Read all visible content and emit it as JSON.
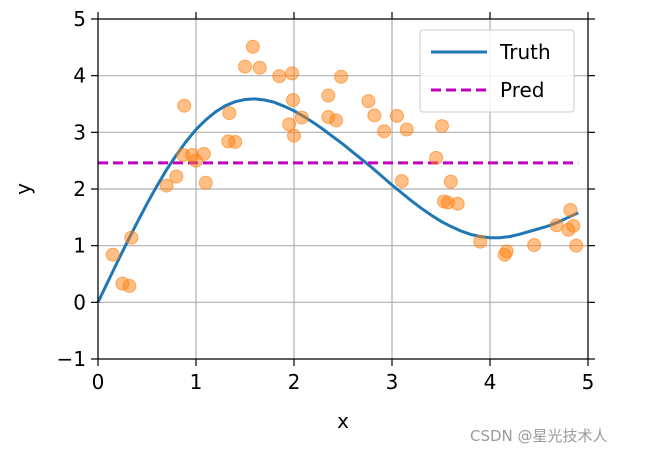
{
  "chart_data": {
    "type": "scatter",
    "xlabel": "x",
    "ylabel": "y",
    "xlim": [
      0,
      5
    ],
    "ylim": [
      -1,
      5
    ],
    "x_ticks": [
      "0",
      "1",
      "2",
      "3",
      "4",
      "5"
    ],
    "y_ticks": [
      "−1",
      "0",
      "1",
      "2",
      "3",
      "4",
      "5"
    ],
    "grid": true,
    "legend_position": "top-right",
    "series": [
      {
        "name": "Truth",
        "kind": "line",
        "color": "#1f77b4",
        "x": [
          0.0,
          0.1,
          0.2,
          0.3,
          0.4,
          0.5,
          0.6,
          0.7,
          0.8,
          0.9,
          1.0,
          1.1,
          1.2,
          1.3,
          1.4,
          1.5,
          1.6,
          1.7,
          1.8,
          1.9,
          2.0,
          2.1,
          2.2,
          2.3,
          2.4,
          2.5,
          2.6,
          2.7,
          2.8,
          2.9,
          3.0,
          3.1,
          3.2,
          3.3,
          3.4,
          3.5,
          3.6,
          3.7,
          3.8,
          3.9,
          4.0,
          4.1,
          4.2,
          4.3,
          4.4,
          4.5,
          4.6,
          4.7,
          4.8,
          4.9
        ],
        "y": [
          0.0,
          0.36,
          0.72,
          1.07,
          1.41,
          1.74,
          2.05,
          2.34,
          2.6,
          2.84,
          3.05,
          3.22,
          3.36,
          3.47,
          3.54,
          3.58,
          3.59,
          3.57,
          3.53,
          3.46,
          3.38,
          3.28,
          3.17,
          3.05,
          2.92,
          2.79,
          2.65,
          2.51,
          2.37,
          2.22,
          2.07,
          1.93,
          1.79,
          1.66,
          1.54,
          1.43,
          1.34,
          1.26,
          1.2,
          1.16,
          1.14,
          1.14,
          1.16,
          1.2,
          1.25,
          1.3,
          1.35,
          1.42,
          1.5,
          1.58
        ]
      },
      {
        "name": "Pred",
        "kind": "dashed-line",
        "color": "#bf00bf",
        "x": [
          0.0,
          4.9
        ],
        "y": [
          2.46,
          2.46
        ]
      },
      {
        "kind": "scatter",
        "color": "#ff7f0e",
        "x": [
          0.15,
          0.25,
          0.32,
          0.34,
          0.7,
          0.8,
          0.87,
          0.88,
          0.96,
          1.0,
          1.08,
          1.1,
          1.33,
          1.34,
          1.4,
          1.5,
          1.58,
          1.65,
          1.85,
          1.95,
          1.98,
          1.99,
          2.0,
          2.08,
          2.35,
          2.35,
          2.43,
          2.48,
          2.76,
          2.82,
          2.92,
          3.05,
          3.1,
          3.15,
          3.45,
          3.51,
          3.53,
          3.57,
          3.6,
          3.67,
          3.9,
          4.15,
          4.17,
          4.45,
          4.68,
          4.8,
          4.82,
          4.85,
          4.88
        ],
        "y": [
          0.84,
          0.33,
          0.29,
          1.14,
          2.06,
          2.22,
          2.6,
          3.47,
          2.6,
          2.5,
          2.62,
          2.11,
          2.84,
          3.34,
          2.83,
          4.16,
          4.51,
          4.14,
          3.99,
          3.14,
          4.04,
          3.57,
          2.94,
          3.26,
          3.65,
          3.27,
          3.21,
          3.98,
          3.55,
          3.3,
          3.02,
          3.29,
          2.14,
          3.05,
          2.55,
          3.11,
          1.78,
          1.76,
          2.13,
          1.74,
          1.07,
          0.84,
          0.9,
          1.01,
          1.36,
          1.28,
          1.63,
          1.35,
          1.0
        ]
      }
    ]
  },
  "legend": {
    "truth_label": "Truth",
    "pred_label": "Pred"
  },
  "watermark": "CSDN @星光技术人"
}
